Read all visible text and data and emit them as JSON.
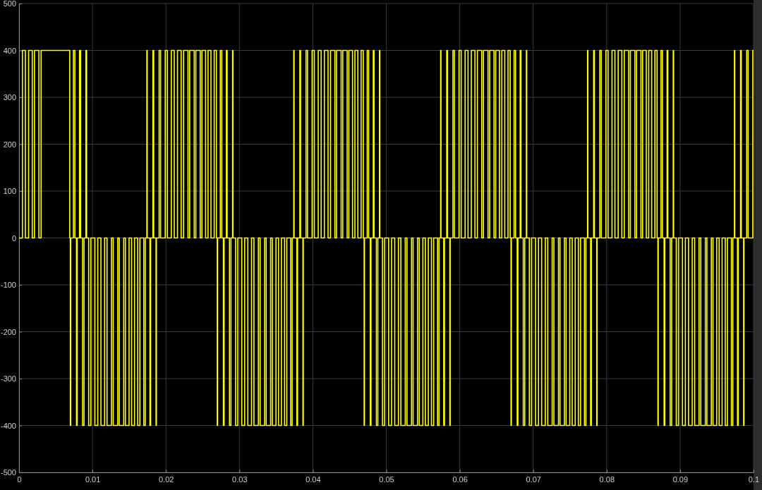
{
  "chart_data": {
    "type": "step",
    "color": "#ffff00",
    "grid": true,
    "xlim": [
      0,
      0.1
    ],
    "ylim": [
      -500,
      500
    ],
    "xticks": [
      0,
      0.01,
      0.02,
      0.03,
      0.04,
      0.05,
      0.06,
      0.07,
      0.08,
      0.09,
      0.1
    ],
    "yticks": [
      -500,
      -400,
      -300,
      -200,
      -100,
      0,
      100,
      200,
      300,
      400,
      500
    ],
    "x": [
      0,
      0.00046,
      0.00086,
      0.0013,
      0.0018,
      0.0021,
      0.0027,
      0.003,
      0.0069,
      0.00698,
      0.00703,
      0.0074,
      0.0076,
      0.00782,
      0.00792,
      0.00823,
      0.00838,
      0.00865,
      0.00885,
      0.0091,
      0.0092,
      0.00948,
      0.00978,
      0.01032,
      0.01072,
      0.01115,
      0.01165,
      0.01198,
      0.01258,
      0.01282,
      0.01344,
      0.01365,
      0.01425,
      0.01448,
      0.01498,
      0.01532,
      0.01572,
      0.01615,
      0.01645,
      0.01698,
      0.01718,
      0.0174,
      0.01745,
      0.01782,
      0.01792,
      0.01823,
      0.01833,
      0.01865,
      0.0187,
      0.01907,
      0.01927,
      0.0199,
      0.0202,
      0.02073,
      0.02113,
      0.02157,
      0.02207,
      0.0224,
      0.023,
      0.02323,
      0.02385,
      0.02407,
      0.02467,
      0.0249,
      0.0254,
      0.02573,
      0.02613,
      0.02657,
      0.02687,
      0.02698,
      0.02703,
      0.0274,
      0.0276,
      0.02782,
      0.02792,
      0.02823,
      0.02833,
      0.02865,
      0.02885,
      0.02907,
      0.02912,
      0.02948,
      0.02978,
      0.03032,
      0.03072,
      0.03115,
      0.03165,
      0.03198,
      0.03258,
      0.03282,
      0.03344,
      0.03365,
      0.03425,
      0.03448,
      0.03498,
      0.03532,
      0.03572,
      0.03615,
      0.03645,
      0.03698,
      0.03718,
      0.0374,
      0.03745,
      0.03782,
      0.03792,
      0.03823,
      0.03833,
      0.03865,
      0.0387,
      0.03907,
      0.03927,
      0.0399,
      0.0402,
      0.04073,
      0.04113,
      0.04157,
      0.04207,
      0.0424,
      0.043,
      0.04323,
      0.04385,
      0.04407,
      0.04467,
      0.0449,
      0.0454,
      0.04573,
      0.04613,
      0.04657,
      0.04687,
      0.04698,
      0.04703,
      0.0474,
      0.0476,
      0.04782,
      0.04792,
      0.04823,
      0.04833,
      0.04865,
      0.04885,
      0.04907,
      0.04912,
      0.04948,
      0.04978,
      0.05032,
      0.05072,
      0.05115,
      0.05165,
      0.05198,
      0.05258,
      0.05282,
      0.05344,
      0.05365,
      0.05425,
      0.05448,
      0.05498,
      0.05532,
      0.05572,
      0.05615,
      0.05645,
      0.05698,
      0.05718,
      0.0574,
      0.05745,
      0.05782,
      0.05792,
      0.05823,
      0.05833,
      0.05865,
      0.0587,
      0.05907,
      0.05927,
      0.0599,
      0.0602,
      0.06073,
      0.06113,
      0.06157,
      0.06207,
      0.0624,
      0.063,
      0.06323,
      0.06385,
      0.06407,
      0.06467,
      0.0649,
      0.0654,
      0.06573,
      0.06613,
      0.06657,
      0.06687,
      0.06698,
      0.06703,
      0.0674,
      0.0676,
      0.06782,
      0.06792,
      0.06823,
      0.06833,
      0.06865,
      0.06885,
      0.06907,
      0.06912,
      0.06948,
      0.06978,
      0.07032,
      0.07072,
      0.07115,
      0.07165,
      0.07198,
      0.07258,
      0.07282,
      0.07344,
      0.07365,
      0.07425,
      0.07448,
      0.07498,
      0.07532,
      0.07572,
      0.07615,
      0.07645,
      0.07698,
      0.07718,
      0.0774,
      0.07745,
      0.07782,
      0.07792,
      0.07823,
      0.07833,
      0.07865,
      0.0787,
      0.07907,
      0.07927,
      0.0799,
      0.0802,
      0.08073,
      0.08113,
      0.08157,
      0.08207,
      0.0824,
      0.083,
      0.08323,
      0.08385,
      0.08407,
      0.08467,
      0.0849,
      0.0854,
      0.08573,
      0.08613,
      0.08657,
      0.08687,
      0.08698,
      0.08703,
      0.0874,
      0.0876,
      0.08782,
      0.08792,
      0.08823,
      0.08833,
      0.08865,
      0.08885,
      0.08907,
      0.08912,
      0.08948,
      0.08978,
      0.09032,
      0.09072,
      0.09115,
      0.09165,
      0.09198,
      0.09258,
      0.09282,
      0.09344,
      0.09365,
      0.09425,
      0.09448,
      0.09498,
      0.09532,
      0.09572,
      0.09615,
      0.09645,
      0.09698,
      0.09718,
      0.0974,
      0.09745,
      0.09782,
      0.09792,
      0.09823,
      0.09833,
      0.09865,
      0.0987,
      0.09907,
      0.09927,
      0.0999,
      0.1
    ],
    "values": [
      0,
      400,
      0,
      400,
      0,
      400,
      0,
      400,
      0,
      -400,
      0,
      400,
      0,
      -400,
      0,
      400,
      0,
      -400,
      0,
      400,
      0,
      -400,
      0,
      -400,
      0,
      -400,
      0,
      -400,
      0,
      -400,
      0,
      -400,
      0,
      -400,
      0,
      -400,
      0,
      -400,
      0,
      -400,
      0,
      400,
      0,
      -400,
      0,
      400,
      0,
      -400,
      0,
      400,
      0,
      400,
      0,
      400,
      0,
      400,
      0,
      400,
      0,
      400,
      0,
      400,
      0,
      400,
      0,
      400,
      0,
      400,
      0,
      -400,
      0,
      400,
      0,
      -400,
      0,
      400,
      0,
      -400,
      0,
      400,
      0,
      -400,
      0,
      -400,
      0,
      -400,
      0,
      -400,
      0,
      -400,
      0,
      -400,
      0,
      -400,
      0,
      -400,
      0,
      -400,
      0,
      -400,
      0,
      400,
      0,
      -400,
      0,
      400,
      0,
      -400,
      0,
      400,
      0,
      400,
      0,
      400,
      0,
      400,
      0,
      400,
      0,
      400,
      0,
      400,
      0,
      400,
      0,
      400,
      0,
      400,
      0,
      -400,
      0,
      400,
      0,
      -400,
      0,
      400,
      0,
      -400,
      0,
      400,
      0,
      -400,
      0,
      -400,
      0,
      -400,
      0,
      -400,
      0,
      -400,
      0,
      -400,
      0,
      -400,
      0,
      -400,
      0,
      -400,
      0,
      -400,
      0,
      400,
      0,
      -400,
      0,
      400,
      0,
      -400,
      0,
      400,
      0,
      400,
      0,
      400,
      0,
      400,
      0,
      400,
      0,
      400,
      0,
      400,
      0,
      400,
      0,
      400,
      0,
      400,
      0,
      -400,
      0,
      400,
      0,
      -400,
      0,
      400,
      0,
      -400,
      0,
      400,
      0,
      -400,
      0,
      -400,
      0,
      -400,
      0,
      -400,
      0,
      -400,
      0,
      -400,
      0,
      -400,
      0,
      -400,
      0,
      -400,
      0,
      -400,
      0,
      400,
      0,
      -400,
      0,
      400,
      0,
      -400,
      0,
      400,
      0,
      400,
      0,
      400,
      0,
      400,
      0,
      400,
      0,
      400,
      0,
      400,
      0,
      400,
      0,
      400,
      0,
      400,
      0,
      -400,
      0,
      400,
      0,
      -400,
      0,
      400,
      0,
      -400,
      0,
      400,
      0,
      -400,
      0,
      -400,
      0,
      -400,
      0,
      -400,
      0,
      -400,
      0,
      -400,
      0,
      -400,
      0,
      -400,
      0,
      -400,
      0,
      -400,
      0,
      400,
      0,
      -400,
      0,
      400,
      0,
      -400,
      0,
      400,
      0,
      400,
      400
    ]
  }
}
